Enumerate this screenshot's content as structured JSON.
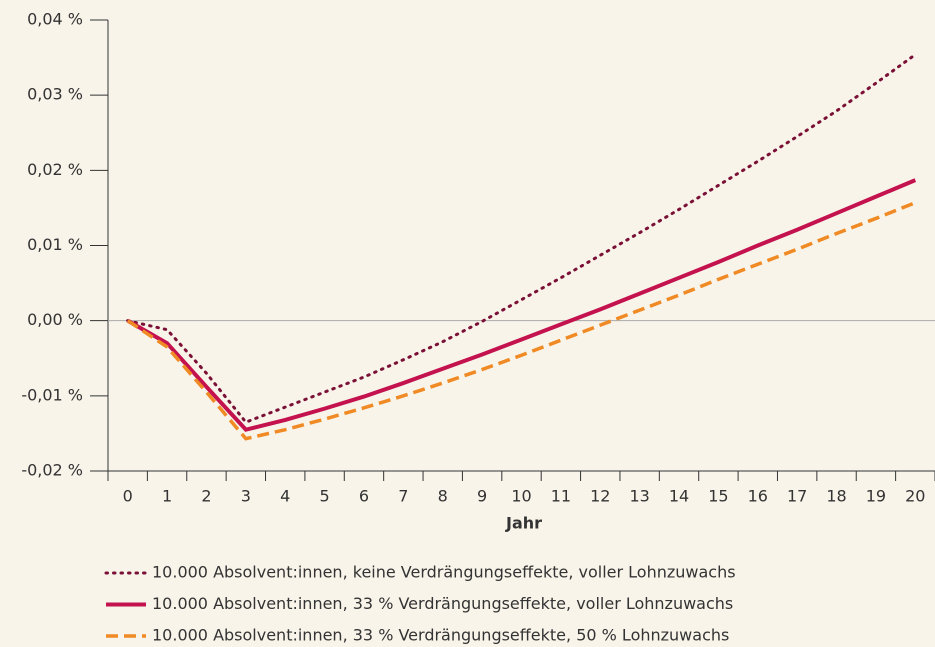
{
  "chart_data": {
    "type": "line",
    "xlabel": "Jahr",
    "categories": [
      "0",
      "1",
      "2",
      "3",
      "4",
      "5",
      "6",
      "7",
      "8",
      "9",
      "10",
      "11",
      "12",
      "13",
      "14",
      "15",
      "16",
      "17",
      "18",
      "19",
      "20"
    ],
    "ylim": [
      -0.02,
      0.04
    ],
    "yticks": [
      {
        "value": -0.02,
        "label": "-0,02 %"
      },
      {
        "value": -0.01,
        "label": "-0,01 %"
      },
      {
        "value": 0,
        "label": "0,00 %"
      },
      {
        "value": 0.01,
        "label": "0,01 %"
      },
      {
        "value": 0.02,
        "label": "0,02 %"
      },
      {
        "value": 0.03,
        "label": "0,03 %"
      },
      {
        "value": 0.04,
        "label": "0,04 %"
      }
    ],
    "series": [
      {
        "name": "10.000 Absolvent:innen, keine Verdrängungseffekte, voller Lohnzuwachs",
        "color": "#7a1036",
        "dash": "dotted",
        "values": [
          0,
          -0.0012,
          -0.007,
          -0.0135,
          -0.0115,
          -0.0095,
          -0.0075,
          -0.0052,
          -0.0028,
          -0.0001,
          0.0028,
          0.0057,
          0.0087,
          0.0117,
          0.0148,
          0.018,
          0.0212,
          0.0245,
          0.0279,
          0.0316,
          0.0354
        ]
      },
      {
        "name": "10.000 Absolvent:innen, 33 % Verdrängungseffekte, voller Lohnzuwachs",
        "color": "#c4124f",
        "dash": "solid",
        "values": [
          0,
          -0.003,
          -0.0088,
          -0.0145,
          -0.0132,
          -0.0117,
          -0.0101,
          -0.0083,
          -0.0064,
          -0.0045,
          -0.0025,
          -0.0005,
          0.0015,
          0.0036,
          0.0057,
          0.0078,
          0.01,
          0.0121,
          0.0143,
          0.0165,
          0.0187
        ]
      },
      {
        "name": "10.000 Absolvent:innen, 33 % Verdrängungseffekte, 50 % Lohnzuwachs",
        "color": "#f08a24",
        "dash": "dashed",
        "values": [
          0,
          -0.0035,
          -0.0095,
          -0.0157,
          -0.0145,
          -0.0131,
          -0.0116,
          -0.01,
          -0.0083,
          -0.0065,
          -0.0046,
          -0.0026,
          -0.0006,
          0.0014,
          0.0034,
          0.0055,
          0.0075,
          0.0095,
          0.0116,
          0.0136,
          0.0157
        ]
      }
    ],
    "legend": "bottom"
  }
}
